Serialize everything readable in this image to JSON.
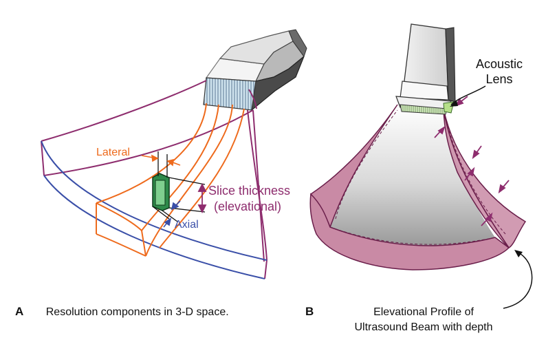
{
  "panel_a": {
    "letter": "A",
    "caption": "Resolution components in 3-D space.",
    "label_lateral": "Lateral",
    "label_axial": "Axial",
    "label_slice_line1": "Slice thickness",
    "label_slice_line2": "(elevational)"
  },
  "panel_b": {
    "letter": "B",
    "label_lens_line1": "Acoustic",
    "label_lens_line2": "Lens",
    "caption_line1": "Elevational Profile of",
    "caption_line2": "Ultrasound Beam with depth"
  },
  "colors": {
    "orange": "#ee6a1c",
    "purple": "#8e2d6e",
    "blue": "#3a4fa8",
    "green": "#2e8a4a",
    "pink_fill": "#c98aa5"
  }
}
